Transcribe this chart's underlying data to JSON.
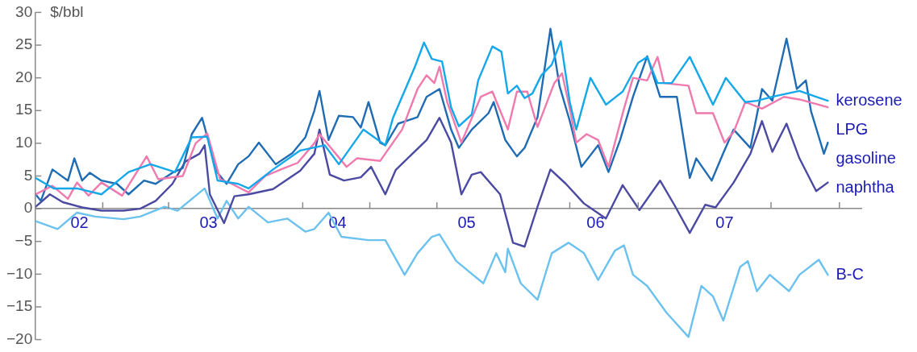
{
  "chart_data": {
    "type": "line",
    "ylabel": "$/bbl",
    "xlim": [
      2001.66,
      2008.06
    ],
    "ylim": [
      -20,
      30
    ],
    "yticks": [
      -20,
      -15,
      -10,
      -5,
      0,
      5,
      10,
      15,
      20,
      25,
      30
    ],
    "xticks": [
      {
        "value": 2002,
        "label": "02"
      },
      {
        "value": 2002.18,
        "label": null
      },
      {
        "value": 2002.69,
        "label": null
      },
      {
        "value": 2003,
        "label": "03"
      },
      {
        "value": 2003.73,
        "label": null
      },
      {
        "value": 2004,
        "label": "04"
      },
      {
        "value": 2004.25,
        "label": null
      },
      {
        "value": 2004.77,
        "label": null
      },
      {
        "value": 2005,
        "label": "05"
      },
      {
        "value": 2005.8,
        "label": null
      },
      {
        "value": 2006,
        "label": "06"
      },
      {
        "value": 2006.33,
        "label": null
      },
      {
        "value": 2007,
        "label": "07"
      },
      {
        "value": 2007.36,
        "label": null
      },
      {
        "value": 2007.89,
        "label": null
      }
    ],
    "legend": false,
    "grid": false,
    "marker": "none",
    "line_style": "solid",
    "series": [
      {
        "name": "kerosene",
        "color": "#14a8ea",
        "x": [
          2001.66,
          2001.8,
          2001.98,
          2002.17,
          2002.38,
          2002.55,
          2002.74,
          2002.87,
          2002.99,
          2003.07,
          2003.23,
          2003.31,
          2003.5,
          2003.71,
          2003.9,
          2004.01,
          2004.2,
          2004.37,
          2004.43,
          2004.6,
          2004.67,
          2004.73,
          2004.81,
          2004.88,
          2004.94,
          2005.04,
          2005.09,
          2005.2,
          2005.27,
          2005.32,
          2005.39,
          2005.45,
          2005.51,
          2005.58,
          2005.66,
          2005.73,
          2005.8,
          2005.85,
          2005.96,
          2006.08,
          2006.21,
          2006.33,
          2006.4,
          2006.48,
          2006.59,
          2006.73,
          2006.91,
          2007.01,
          2007.16,
          2007.25,
          2007.37,
          2007.58,
          2007.8
        ],
        "values": [
          4.7,
          3.1,
          3.1,
          2.2,
          5.6,
          6.8,
          5.6,
          10.9,
          11,
          4.3,
          3.8,
          3.1,
          6,
          8.9,
          9.7,
          6.8,
          12.1,
          9.7,
          13.9,
          21.7,
          25.4,
          22.9,
          22.5,
          15.5,
          12.6,
          14.4,
          19.6,
          24.8,
          24,
          17.6,
          18.8,
          16.9,
          17.6,
          20.4,
          22,
          25.6,
          16.3,
          12.1,
          20,
          15.9,
          17.9,
          22.3,
          23.2,
          19.2,
          19.2,
          23.2,
          15.9,
          20,
          16.3,
          16.5,
          17.1,
          18,
          16.5
        ]
      },
      {
        "name": "LPG",
        "color": "#f07aae",
        "x": [
          2001.66,
          2001.79,
          2001.91,
          2001.98,
          2002.07,
          2002.17,
          2002.33,
          2002.52,
          2002.61,
          2002.8,
          2002.9,
          2002.99,
          2003.09,
          2003.18,
          2003.31,
          2003.44,
          2003.56,
          2003.69,
          2003.82,
          2003.86,
          2004.07,
          2004.15,
          2004.33,
          2004.5,
          2004.62,
          2004.69,
          2004.75,
          2004.79,
          2004.85,
          2004.96,
          2005.11,
          2005.2,
          2005.32,
          2005.39,
          2005.47,
          2005.55,
          2005.68,
          2005.74,
          2005.8,
          2005.85,
          2005.93,
          2006.02,
          2006.1,
          2006.22,
          2006.29,
          2006.4,
          2006.48,
          2006.53,
          2006.72,
          2006.78,
          2006.91,
          2007.0,
          2007.07,
          2007.16,
          2007.29,
          2007.46,
          2007.58,
          2007.8
        ],
        "values": [
          2.2,
          3.5,
          1.5,
          4,
          2,
          4,
          2,
          8,
          4.5,
          5,
          10,
          11.5,
          4.5,
          3.8,
          2.5,
          5,
          6,
          7,
          10,
          11.4,
          6.4,
          7.7,
          7.3,
          12.1,
          18.3,
          20.4,
          19.2,
          21.7,
          16.3,
          10.1,
          17.1,
          17.9,
          12.1,
          17.9,
          17.9,
          12.5,
          19.2,
          20.7,
          15.3,
          10.1,
          11.4,
          10.5,
          6.4,
          15.3,
          20,
          19.6,
          23.2,
          19.2,
          18.8,
          14.6,
          14.6,
          10.1,
          11.7,
          16.3,
          15.3,
          17.1,
          16.7,
          15.5
        ]
      },
      {
        "name": "gasoline",
        "color": "#1f6cb4",
        "x": [
          2001.66,
          2001.7,
          2001.79,
          2001.91,
          2001.96,
          2002.02,
          2002.08,
          2002.17,
          2002.29,
          2002.38,
          2002.5,
          2002.59,
          2002.72,
          2002.8,
          2002.87,
          2002.95,
          2002.99,
          2003.07,
          2003.14,
          2003.23,
          2003.31,
          2003.39,
          2003.52,
          2003.65,
          2003.75,
          2003.82,
          2003.86,
          2003.93,
          2004.01,
          2004.12,
          2004.18,
          2004.24,
          2004.33,
          2004.37,
          2004.47,
          2004.62,
          2004.69,
          2004.79,
          2004.88,
          2004.94,
          2005.04,
          2005.17,
          2005.21,
          2005.3,
          2005.39,
          2005.45,
          2005.55,
          2005.65,
          2005.72,
          2005.8,
          2005.89,
          2006.02,
          2006.1,
          2006.19,
          2006.29,
          2006.4,
          2006.5,
          2006.63,
          2006.73,
          2006.78,
          2006.9,
          2006.99,
          2007.07,
          2007.2,
          2007.29,
          2007.37,
          2007.48,
          2007.56,
          2007.63,
          2007.67,
          2007.77,
          2007.8
        ],
        "values": [
          2.2,
          1.2,
          6,
          4.3,
          7.7,
          4.3,
          5.5,
          4.3,
          3.8,
          2.2,
          4.3,
          3.8,
          5.5,
          6.2,
          11.4,
          13.9,
          11,
          5.5,
          3.8,
          6.8,
          8,
          10.1,
          6.8,
          8.5,
          10.9,
          15,
          18,
          10.5,
          14.2,
          14,
          12.4,
          16.3,
          10.1,
          9.7,
          13,
          14,
          17.1,
          18.3,
          12.1,
          9.3,
          12.1,
          14.6,
          16.3,
          10.5,
          8,
          9.3,
          14,
          27.5,
          18.8,
          13.4,
          6.4,
          9.7,
          5.6,
          10.5,
          17.1,
          23.3,
          17.1,
          17.1,
          4.7,
          7.7,
          4.3,
          8.5,
          12.1,
          9.3,
          18.3,
          16.5,
          26,
          18.3,
          19.6,
          14.9,
          8.4,
          10.1
        ]
      },
      {
        "name": "naphtha",
        "color": "#4b4aa2",
        "x": [
          2001.66,
          2001.77,
          2001.87,
          2002.02,
          2002.17,
          2002.34,
          2002.47,
          2002.59,
          2002.72,
          2002.82,
          2002.93,
          2002.97,
          2003.01,
          2003.12,
          2003.2,
          2003.31,
          2003.5,
          2003.71,
          2003.82,
          2003.86,
          2003.94,
          2004.05,
          2004.18,
          2004.26,
          2004.37,
          2004.45,
          2004.58,
          2004.69,
          2004.79,
          2004.88,
          2004.96,
          2005.04,
          2005.11,
          2005.26,
          2005.36,
          2005.45,
          2005.55,
          2005.65,
          2005.77,
          2005.91,
          2006.08,
          2006.21,
          2006.34,
          2006.5,
          2006.61,
          2006.73,
          2006.85,
          2006.93,
          2007.07,
          2007.2,
          2007.29,
          2007.37,
          2007.48,
          2007.58,
          2007.71,
          2007.8
        ],
        "values": [
          0.3,
          2.2,
          1,
          0.2,
          -0.3,
          -0.3,
          0,
          1.2,
          3.8,
          7.2,
          8.4,
          9.7,
          2.2,
          -2.2,
          1.9,
          2.2,
          3,
          5.8,
          8.4,
          12.1,
          5.2,
          4.3,
          4.8,
          6.4,
          2.2,
          5.9,
          8.4,
          10.5,
          13.9,
          10.1,
          2.2,
          5.2,
          5.6,
          2.2,
          -5.2,
          -5.8,
          0.3,
          6,
          3.8,
          0.8,
          -1.5,
          3.6,
          -0.2,
          4.3,
          0.6,
          -3.7,
          0.6,
          0.2,
          4,
          8.4,
          13.4,
          8.7,
          13,
          7.7,
          2.7,
          4
        ]
      },
      {
        "name": "B-C",
        "color": "#6cc2ee",
        "x": [
          2001.66,
          2001.83,
          2001.98,
          2002.12,
          2002.34,
          2002.47,
          2002.66,
          2002.76,
          2002.97,
          2003.07,
          2003.14,
          2003.23,
          2003.31,
          2003.46,
          2003.61,
          2003.75,
          2003.82,
          2003.93,
          2004.03,
          2004.24,
          2004.37,
          2004.52,
          2004.62,
          2004.73,
          2004.79,
          2004.92,
          2005.13,
          2005.23,
          2005.3,
          2005.32,
          2005.42,
          2005.55,
          2005.66,
          2005.79,
          2005.91,
          2006.02,
          2006.15,
          2006.22,
          2006.29,
          2006.4,
          2006.55,
          2006.72,
          2006.82,
          2006.91,
          2006.99,
          2007.12,
          2007.18,
          2007.25,
          2007.35,
          2007.5,
          2007.58,
          2007.73,
          2007.8
        ],
        "values": [
          -1.9,
          -3.1,
          -0.6,
          -1.2,
          -1.6,
          -1.2,
          0.3,
          -0.3,
          3.1,
          -1.5,
          1.2,
          -1.5,
          0.3,
          -2.1,
          -1.5,
          -3.5,
          -3.1,
          -0.6,
          -4.3,
          -4.8,
          -4.8,
          -10.1,
          -6.8,
          -4.3,
          -3.9,
          -8,
          -11.4,
          -6.8,
          -9.7,
          -6.1,
          -11.4,
          -13.9,
          -6.8,
          -5.2,
          -6.8,
          -10.9,
          -6.4,
          -5.6,
          -10.1,
          -11.8,
          -15.9,
          -19.6,
          -11.8,
          -13.4,
          -17.1,
          -8.9,
          -8,
          -12.6,
          -10.1,
          -12.6,
          -10.1,
          -7.8,
          -10.1
        ]
      }
    ]
  }
}
